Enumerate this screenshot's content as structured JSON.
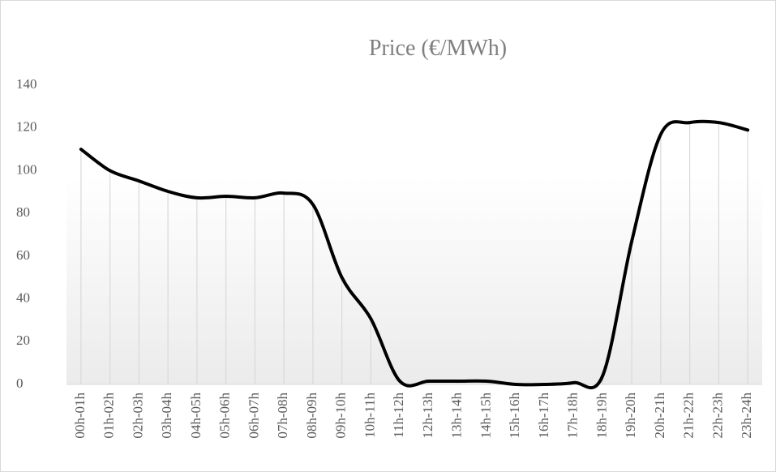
{
  "chart_data": {
    "type": "line",
    "title": "Price (€/MWh)",
    "categories": [
      "00h-01h",
      "01h-02h",
      "02h-03h",
      "03h-04h",
      "04h-05h",
      "05h-06h",
      "06h-07h",
      "07h-08h",
      "08h-09h",
      "09h-10h",
      "10h-11h",
      "11h-12h",
      "12h-13h",
      "13h-14h",
      "14h-15h",
      "15h-16h",
      "16h-17h",
      "17h-18h",
      "18h-19h",
      "19h-20h",
      "20h-21h",
      "21h-22h",
      "22h-23h",
      "23h-24h"
    ],
    "values": [
      110,
      100,
      95.2,
      90.3,
      87.3,
      88,
      87.3,
      89.5,
      84.2,
      50,
      30.7,
      1.5,
      1.5,
      1.5,
      1.5,
      0,
      0,
      0.8,
      4.2,
      67,
      117,
      122.5,
      122.5,
      119
    ],
    "color": "#000000",
    "ylim": [
      0,
      140
    ],
    "yticks": [
      0,
      20,
      40,
      60,
      80,
      100,
      120,
      140
    ],
    "grid": true,
    "smooth": true
  }
}
